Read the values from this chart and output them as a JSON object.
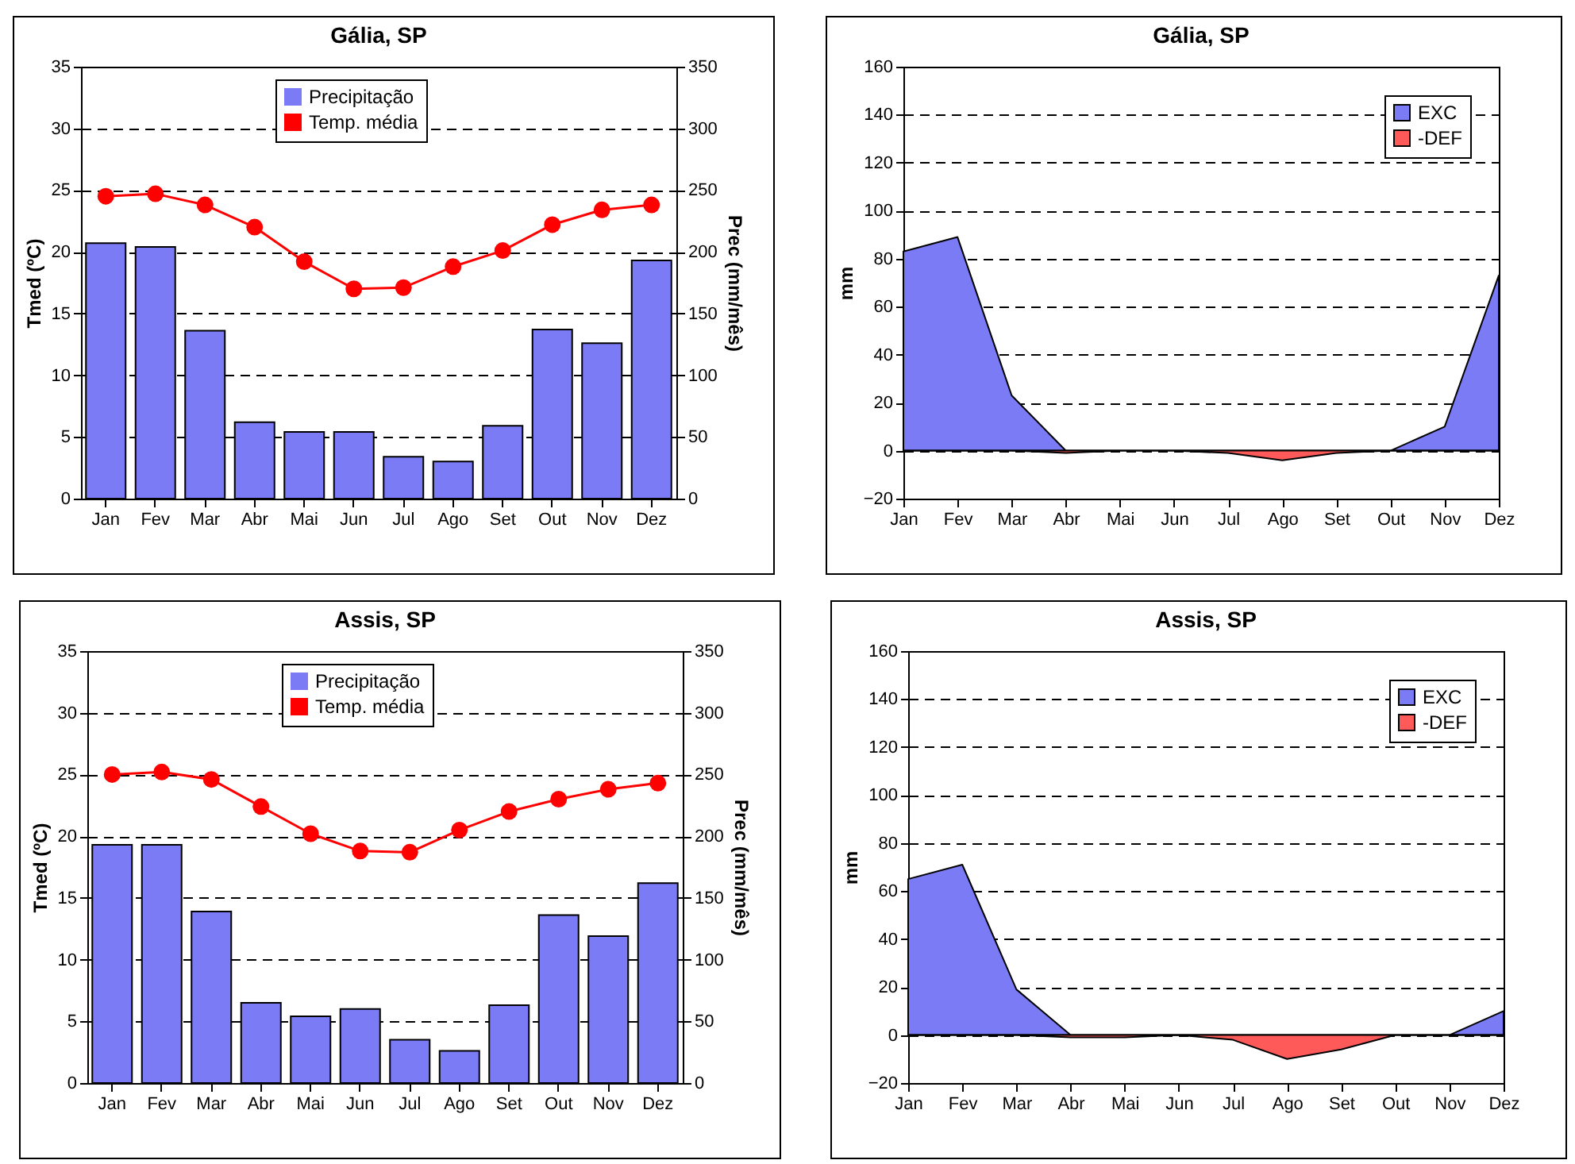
{
  "chart_data": [
    {
      "type": "bar",
      "title": "Gália, SP",
      "categories": [
        "Jan",
        "Fev",
        "Mar",
        "Abr",
        "Mai",
        "Jun",
        "Jul",
        "Ago",
        "Set",
        "Out",
        "Nov",
        "Dez"
      ],
      "ylabel": "Tmed (ºC)",
      "y2label": "Prec (mm/mês)",
      "ylim": [
        0,
        35
      ],
      "yticks": [
        0,
        5,
        10,
        15,
        20,
        25,
        30,
        35
      ],
      "y2lim": [
        0,
        350
      ],
      "y2ticks": [
        0,
        50,
        100,
        150,
        200,
        250,
        300,
        350
      ],
      "grid": "y",
      "legend": "top",
      "marker": "circle",
      "series": [
        {
          "name": "Precipitação",
          "type": "bar",
          "axis": "y2",
          "color": "#7b7bf5",
          "values": [
            207,
            204,
            136,
            62,
            54,
            54,
            34,
            30,
            59,
            137,
            126,
            193
          ]
        },
        {
          "name": "Temp. média",
          "type": "line",
          "color": "#ff0000",
          "values": [
            24.5,
            24.7,
            23.8,
            22.0,
            19.2,
            17.0,
            17.1,
            18.8,
            20.1,
            22.2,
            23.4,
            23.8
          ]
        }
      ]
    },
    {
      "type": "area",
      "title": "Gália, SP",
      "categories": [
        "Jan",
        "Fev",
        "Mar",
        "Abr",
        "Mai",
        "Jun",
        "Jul",
        "Ago",
        "Set",
        "Out",
        "Nov",
        "Dez"
      ],
      "ylabel": "mm",
      "ylim": [
        -20,
        160
      ],
      "yticks": [
        -20,
        0,
        20,
        40,
        60,
        80,
        100,
        120,
        140,
        160
      ],
      "grid": "y",
      "legend": "top right",
      "series": [
        {
          "name": "EXC",
          "color": "#7b7bf5",
          "values": [
            83,
            89,
            23,
            0,
            0,
            0,
            0,
            0,
            0,
            0,
            10,
            73
          ]
        },
        {
          "name": "-DEF",
          "color": "#ff5a5a",
          "values": [
            0,
            0,
            0,
            -1,
            0,
            0,
            -1,
            -4,
            -1,
            0,
            0,
            0
          ]
        }
      ]
    },
    {
      "type": "bar",
      "title": "Assis, SP",
      "categories": [
        "Jan",
        "Fev",
        "Mar",
        "Abr",
        "Mai",
        "Jun",
        "Jul",
        "Ago",
        "Set",
        "Out",
        "Nov",
        "Dez"
      ],
      "ylabel": "Tmed (ºC)",
      "y2label": "Prec (mm/mês)",
      "ylim": [
        0,
        35
      ],
      "yticks": [
        0,
        5,
        10,
        15,
        20,
        25,
        30,
        35
      ],
      "y2lim": [
        0,
        350
      ],
      "y2ticks": [
        0,
        50,
        100,
        150,
        200,
        250,
        300,
        350
      ],
      "grid": "y",
      "legend": "top",
      "marker": "circle",
      "series": [
        {
          "name": "Precipitação",
          "type": "bar",
          "axis": "y2",
          "color": "#7b7bf5",
          "values": [
            193,
            193,
            139,
            65,
            54,
            60,
            35,
            26,
            63,
            136,
            119,
            162
          ]
        },
        {
          "name": "Temp. média",
          "type": "line",
          "color": "#ff0000",
          "values": [
            25.0,
            25.2,
            24.6,
            22.4,
            20.2,
            18.8,
            18.7,
            20.5,
            22.0,
            23.0,
            23.8,
            24.3
          ]
        }
      ]
    },
    {
      "type": "area",
      "title": "Assis, SP",
      "categories": [
        "Jan",
        "Fev",
        "Mar",
        "Abr",
        "Mai",
        "Jun",
        "Jul",
        "Ago",
        "Set",
        "Out",
        "Nov",
        "Dez"
      ],
      "ylabel": "mm",
      "ylim": [
        -20,
        160
      ],
      "yticks": [
        -20,
        0,
        20,
        40,
        60,
        80,
        100,
        120,
        140,
        160
      ],
      "grid": "y",
      "legend": "top right",
      "series": [
        {
          "name": "EXC",
          "color": "#7b7bf5",
          "values": [
            65,
            71,
            19,
            0,
            0,
            0,
            0,
            0,
            0,
            0,
            0,
            10
          ]
        },
        {
          "name": "-DEF",
          "color": "#ff5a5a",
          "values": [
            0,
            0,
            0,
            -1,
            -1,
            0,
            -2,
            -10,
            -6,
            0,
            0,
            0
          ]
        }
      ]
    }
  ]
}
